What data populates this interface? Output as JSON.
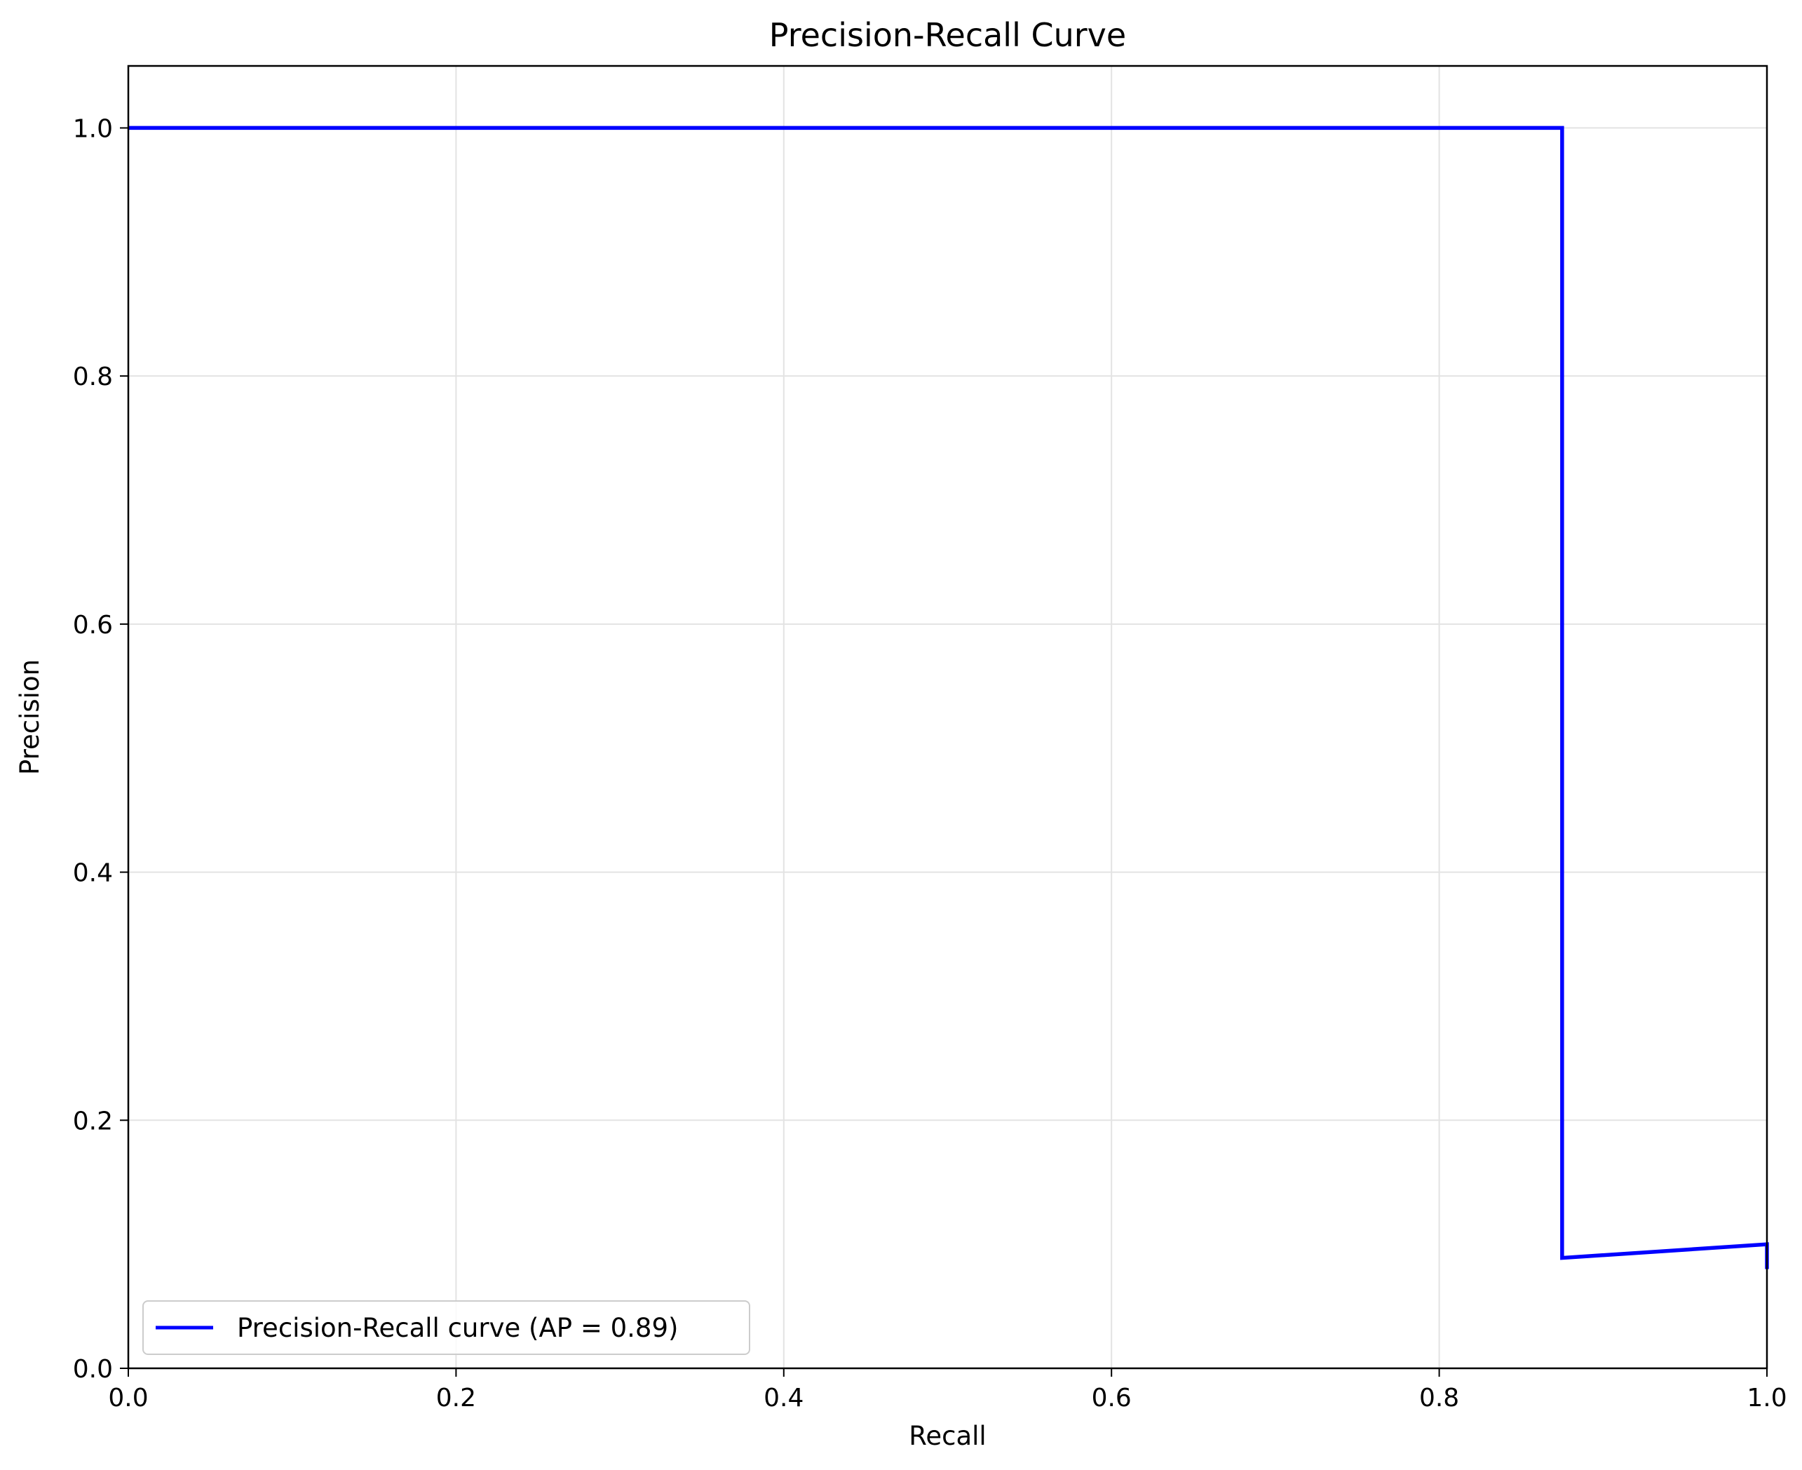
{
  "chart_data": {
    "type": "line",
    "title": "Precision-Recall Curve",
    "xlabel": "Recall",
    "ylabel": "Precision",
    "xlim": [
      0.0,
      1.0
    ],
    "ylim": [
      0.0,
      1.05
    ],
    "x_ticks": [
      "0.0",
      "0.2",
      "0.4",
      "0.6",
      "0.8",
      "1.0"
    ],
    "y_ticks": [
      "0.0",
      "0.2",
      "0.4",
      "0.6",
      "0.8",
      "1.0"
    ],
    "grid": true,
    "legend_position": "lower-left",
    "series": [
      {
        "name": "Precision-Recall curve (AP = 0.89)",
        "color": "#0000ff",
        "x": [
          0.0,
          0.875,
          0.875,
          1.0,
          1.0
        ],
        "y": [
          1.0,
          1.0,
          0.089,
          0.1,
          0.08
        ]
      }
    ]
  }
}
